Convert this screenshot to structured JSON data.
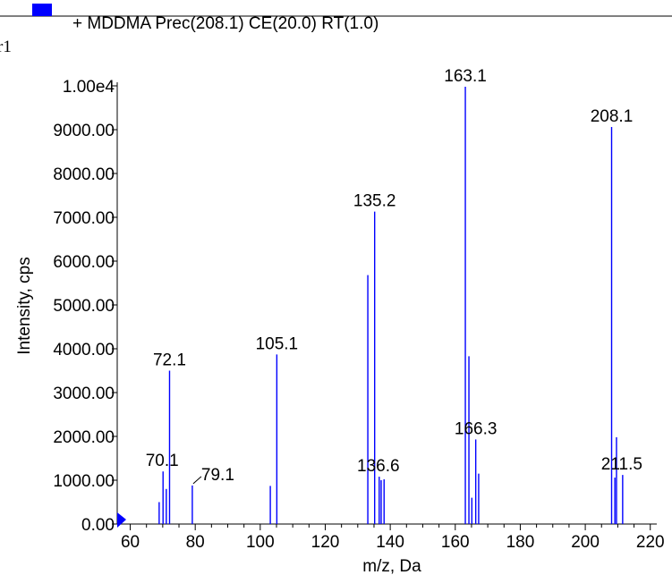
{
  "chart_data": {
    "type": "bar",
    "title": "",
    "legend": {
      "label": "+ MDDMA Prec(208.1) CE(20.0) RT(1.0)",
      "color": "#0000ff",
      "position": "top-left"
    },
    "xlabel": "m/z, Da",
    "ylabel": "Intensity, cps",
    "xlim": [
      56,
      222
    ],
    "ylim": [
      0,
      10000
    ],
    "xticks": [
      60,
      80,
      100,
      120,
      140,
      160,
      180,
      200,
      220
    ],
    "yticks": [
      {
        "value": 0,
        "label": "0.00"
      },
      {
        "value": 1000,
        "label": "1000.00"
      },
      {
        "value": 2000,
        "label": "2000.00"
      },
      {
        "value": 3000,
        "label": "3000.00"
      },
      {
        "value": 4000,
        "label": "4000.00"
      },
      {
        "value": 5000,
        "label": "5000.00"
      },
      {
        "value": 6000,
        "label": "6000.00"
      },
      {
        "value": 7000,
        "label": "7000.00"
      },
      {
        "value": 8000,
        "label": "8000.00"
      },
      {
        "value": 9000,
        "label": "9000.00"
      },
      {
        "value": 10000,
        "label": "1.00e4"
      }
    ],
    "peaks": [
      {
        "mz": 68.9,
        "intensity": 500
      },
      {
        "mz": 70.1,
        "intensity": 1200
      },
      {
        "mz": 71.1,
        "intensity": 800
      },
      {
        "mz": 72.1,
        "intensity": 3500
      },
      {
        "mz": 79.1,
        "intensity": 880
      },
      {
        "mz": 103.1,
        "intensity": 870
      },
      {
        "mz": 105.1,
        "intensity": 3870
      },
      {
        "mz": 133.1,
        "intensity": 5680
      },
      {
        "mz": 135.2,
        "intensity": 7130
      },
      {
        "mz": 136.6,
        "intensity": 1080
      },
      {
        "mz": 137.2,
        "intensity": 1000
      },
      {
        "mz": 138.1,
        "intensity": 1020
      },
      {
        "mz": 163.1,
        "intensity": 9980
      },
      {
        "mz": 164.2,
        "intensity": 3830
      },
      {
        "mz": 165.1,
        "intensity": 600
      },
      {
        "mz": 166.3,
        "intensity": 1930
      },
      {
        "mz": 167.2,
        "intensity": 1150
      },
      {
        "mz": 208.1,
        "intensity": 9060
      },
      {
        "mz": 209.1,
        "intensity": 1060
      },
      {
        "mz": 209.6,
        "intensity": 1980
      },
      {
        "mz": 211.5,
        "intensity": 1120
      }
    ],
    "peak_labels": [
      {
        "text": "70.1",
        "mz": 70.1,
        "intensity": 1200
      },
      {
        "text": "72.1",
        "mz": 72.1,
        "intensity": 3500
      },
      {
        "text": "79.1",
        "mz": 79.1,
        "intensity": 880
      },
      {
        "text": "105.1",
        "mz": 105.1,
        "intensity": 3870
      },
      {
        "text": "135.2",
        "mz": 135.2,
        "intensity": 7130
      },
      {
        "text": "136.6",
        "mz": 136.6,
        "intensity": 1080
      },
      {
        "text": "163.1",
        "mz": 163.1,
        "intensity": 9980
      },
      {
        "text": "166.3",
        "mz": 166.3,
        "intensity": 1930
      },
      {
        "text": "208.1",
        "mz": 208.1,
        "intensity": 9060
      },
      {
        "text": "211.5",
        "mz": 211.5,
        "intensity": 1120
      }
    ]
  }
}
